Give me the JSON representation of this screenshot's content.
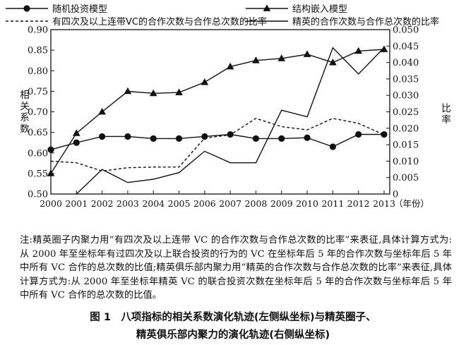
{
  "chart_data": {
    "type": "line",
    "x": [
      "2000",
      "2001",
      "2002",
      "2003",
      "2004",
      "2005",
      "2006",
      "2007",
      "2008",
      "2009",
      "2010",
      "2011",
      "2012",
      "2013"
    ],
    "x_unit": "（年份）",
    "ylabel_left": "相关系数",
    "ylabel_right": "比率",
    "ylim_left": [
      0.5,
      0.9
    ],
    "yticks_left": [
      "0.50",
      "0.55",
      "0.60",
      "0.65",
      "0.70",
      "0.75",
      "0.80",
      "0.85",
      "0.90"
    ],
    "ylim_right": [
      0,
      0.05
    ],
    "yticks_right": [
      "0",
      "0.005",
      "0.010",
      "0.015",
      "0.020",
      "0.025",
      "0.030",
      "0.035",
      "0.040",
      "0.045",
      "0.050"
    ],
    "legend_position": "top",
    "series": [
      {
        "name": "随机投资模型",
        "axis": "left",
        "style": "solid-circle",
        "values": [
          0.608,
          0.625,
          0.64,
          0.64,
          0.635,
          0.635,
          0.64,
          0.645,
          0.635,
          0.635,
          0.637,
          0.615,
          0.645,
          0.645
        ]
      },
      {
        "name": "结构嵌入模型",
        "axis": "left",
        "style": "solid-triangle",
        "values": [
          0.55,
          0.648,
          0.7,
          0.75,
          0.745,
          0.747,
          0.772,
          0.81,
          0.825,
          0.83,
          0.84,
          0.82,
          0.848,
          0.852
        ]
      },
      {
        "name": "有四次及以上连带VC的合作次数与合作总次数的比率",
        "axis": "right",
        "style": "dashed",
        "values": [
          0.01,
          0.0095,
          0.007,
          0.008,
          0.0082,
          0.0082,
          0.017,
          0.018,
          0.023,
          0.0205,
          0.0195,
          0.023,
          0.0215,
          0.018
        ]
      },
      {
        "name": "精英的合作次数与合作总次数的比率",
        "axis": "right",
        "style": "solid",
        "values": [
          null,
          0.0,
          0.0075,
          0.0035,
          0.0045,
          0.0065,
          0.013,
          0.0095,
          0.0095,
          0.0255,
          0.0235,
          0.0445,
          0.0365,
          0.0445
        ]
      }
    ]
  },
  "note": "注:精英圈子内聚力用“有四次及以上连带 VC 的合作次数与合作总次数的比率”来表征,具体计算方式为:从 2000 年至坐标年有过四次及以上联合投资的行为的 VC 在坐标年后 5 年的合作次数与坐标年后 5 年中所有 VC 合作的总次数的比值;精英俱乐部内聚力用“精英的合作次数与合作总次数的比率”来表征,具体计算方式为:从 2000 年至坐标年精英 VC 的联合投资次数在坐标年后 5 年的合作次数与坐标年后 5 年中所有 VC 合作的总次数的比值。",
  "caption_line1": "图 1　八项指标的相关系数演化轨迹(左侧纵坐标)与精英圈子、",
  "caption_line2": "精英俱乐部内聚力的演化轨迹(右侧纵坐标)"
}
